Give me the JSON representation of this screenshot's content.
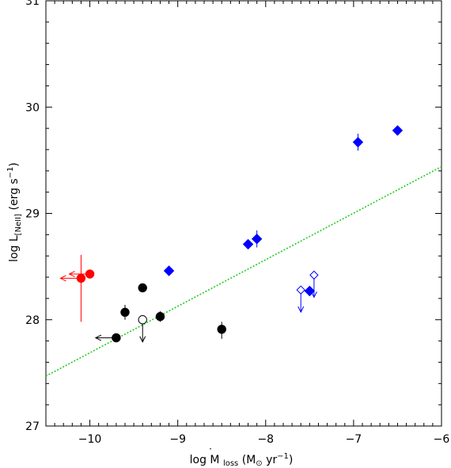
{
  "chart_data": {
    "type": "scatter",
    "title": "",
    "xlabel": "log Ṁloss (M⊙ yr⁻¹)",
    "ylabel": "log L[NeII] (erg s⁻¹)",
    "xlim": [
      -10.5,
      -6
    ],
    "ylim": [
      27,
      31
    ],
    "xticks": [
      -10,
      -9,
      -8,
      -7,
      -6
    ],
    "xtick_labels": [
      "−10",
      "−9",
      "−8",
      "−7",
      "−6"
    ],
    "yticks": [
      27,
      28,
      29,
      30,
      31
    ],
    "ytick_labels": [
      "27",
      "28",
      "29",
      "30",
      "31"
    ],
    "grid": false,
    "legend": "none",
    "series": [
      {
        "color": "#ff0000",
        "marker": "filled-circle",
        "points": [
          {
            "x": -10.1,
            "y": 28.39,
            "yerr": [
              0.41,
              0.22
            ],
            "x_upper_limit": true
          },
          {
            "x": -10.0,
            "y": 28.43,
            "x_upper_limit": true
          }
        ]
      },
      {
        "color": "#000000",
        "marker": "filled-circle",
        "points": [
          {
            "x": -9.7,
            "y": 27.83,
            "x_upper_limit": true
          },
          {
            "x": -9.6,
            "y": 28.07,
            "yerr": [
              0.07,
              0.07
            ]
          },
          {
            "x": -9.4,
            "y": 28.3
          },
          {
            "x": -9.2,
            "y": 28.03,
            "yerr": [
              0.05,
              0.05
            ]
          },
          {
            "x": -8.5,
            "y": 27.91,
            "yerr": [
              0.09,
              0.07
            ]
          }
        ]
      },
      {
        "color": "#000000",
        "marker": "open-circle",
        "points": [
          {
            "x": -9.4,
            "y": 28.0,
            "y_upper_limit": true
          }
        ]
      },
      {
        "color": "#0000ff",
        "marker": "filled-diamond",
        "points": [
          {
            "x": -9.1,
            "y": 28.46
          },
          {
            "x": -8.2,
            "y": 28.71
          },
          {
            "x": -8.1,
            "y": 28.76,
            "yerr": [
              0.08,
              0.08
            ]
          },
          {
            "x": -7.5,
            "y": 28.27
          },
          {
            "x": -6.95,
            "y": 29.67,
            "yerr": [
              0.08,
              0.08
            ]
          },
          {
            "x": -6.5,
            "y": 29.78
          }
        ]
      },
      {
        "color": "#0000ff",
        "marker": "open-diamond",
        "points": [
          {
            "x": -7.6,
            "y": 28.28,
            "y_upper_limit": true
          },
          {
            "x": -7.45,
            "y": 28.42,
            "y_upper_limit": true
          }
        ]
      }
    ],
    "fit_line": {
      "color": "#22cc22",
      "style": "dotted",
      "x": [
        -10.5,
        -6
      ],
      "y": [
        27.47,
        29.44
      ]
    }
  }
}
